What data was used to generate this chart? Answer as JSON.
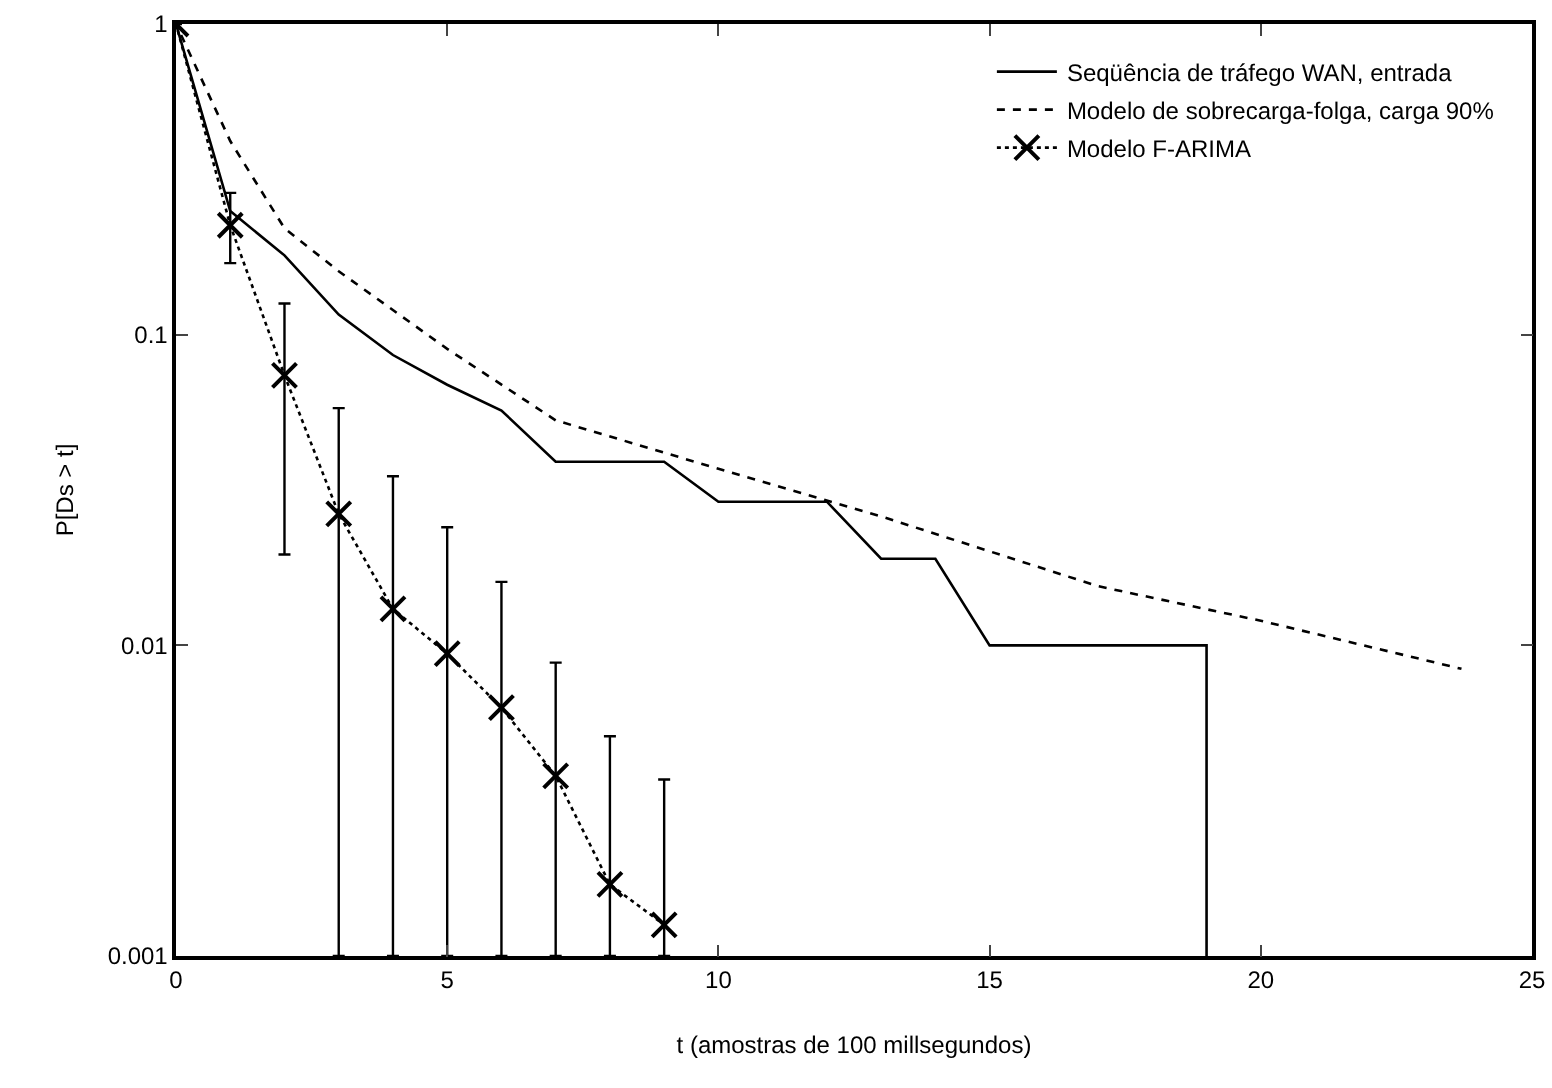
{
  "chart_data": {
    "type": "line",
    "xlabel": "t (amostras de 100 millsegundos)",
    "ylabel": "P[Ds > t]",
    "xlim": [
      0,
      25
    ],
    "xticks": [
      0,
      5,
      10,
      15,
      20,
      25
    ],
    "ylim": [
      0.001,
      1
    ],
    "yticks": [
      0.001,
      0.01,
      0.1,
      1
    ],
    "log": "y",
    "grid": false,
    "legend": "top right",
    "series": [
      {
        "name": "Seqüência de tráfego WAN, entrada",
        "color": "#000000",
        "line_style": "solid",
        "marker": "none",
        "x": [
          0,
          1,
          2,
          3,
          4,
          5,
          6,
          7,
          8,
          9,
          10,
          11,
          12,
          13,
          14,
          15,
          16,
          17,
          18,
          19,
          19
        ],
        "values": [
          1,
          0.25,
          0.18,
          0.116,
          0.086,
          0.069,
          0.057,
          0.039,
          0.039,
          0.039,
          0.029,
          0.029,
          0.029,
          0.019,
          0.019,
          0.01,
          0.01,
          0.01,
          0.01,
          0.01,
          0.001
        ]
      },
      {
        "name": "Modelo de sobrecarga-folga, carga 90%",
        "color": "#000000",
        "line_style": "dashed",
        "marker": "none",
        "x": [
          0,
          1,
          2,
          3,
          5,
          7,
          10,
          13,
          17,
          20,
          23.7
        ],
        "values": [
          1,
          0.42,
          0.22,
          0.16,
          0.09,
          0.053,
          0.037,
          0.026,
          0.0155,
          0.012,
          0.0084
        ]
      },
      {
        "name": "Modelo F-ARIMA",
        "color": "#000000",
        "line_style": "dotted",
        "marker": "cross",
        "x": [
          0,
          1,
          2,
          3,
          4,
          5,
          6,
          7,
          8,
          9
        ],
        "values": [
          1,
          0.225,
          0.074,
          0.0265,
          0.0131,
          0.0094,
          0.0063,
          0.0038,
          0.0017,
          0.00126
        ],
        "errors": [
          null,
          [
            0.17,
            0.286
          ],
          [
            0.0196,
            0.126
          ],
          [
            0.001,
            0.058
          ],
          [
            0.001,
            0.035
          ],
          [
            0.001,
            0.024
          ],
          [
            0.001,
            0.016
          ],
          [
            0.001,
            0.0088
          ],
          [
            0.001,
            0.0051
          ],
          [
            0.001,
            0.0037
          ]
        ]
      }
    ]
  }
}
